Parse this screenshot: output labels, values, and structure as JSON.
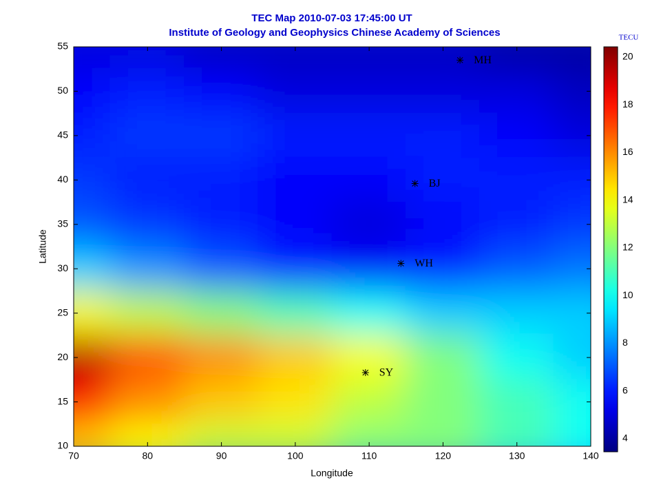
{
  "chart_data": {
    "type": "heatmap",
    "title": "TEC Map 2010-07-03 17:45:00 UT",
    "subtitle": "Institute of Geology and Geophysics Chinese Academy of Sciences",
    "x_label": "Longitude",
    "y_label": "Latitude",
    "colorbar_label": "TECU",
    "x": [
      70,
      80,
      90,
      100,
      110,
      120,
      130,
      140
    ],
    "y": [
      55,
      50,
      45,
      40,
      35,
      30,
      25,
      20,
      15,
      10
    ],
    "z": [
      [
        5,
        5,
        4.5,
        4.5,
        4.5,
        4.5,
        4,
        4
      ],
      [
        5.5,
        6,
        5.5,
        5,
        5,
        5,
        5,
        4.5
      ],
      [
        6,
        6.5,
        6.5,
        6,
        6,
        6,
        5.5,
        5
      ],
      [
        6.5,
        6,
        6,
        5.5,
        5.5,
        6,
        6,
        6
      ],
      [
        7,
        6.5,
        6,
        5.5,
        5,
        5.5,
        6,
        6.5
      ],
      [
        9,
        8,
        7,
        6,
        5.5,
        6,
        7,
        7.5
      ],
      [
        14,
        13,
        12,
        11,
        10,
        9,
        9,
        9
      ],
      [
        19.5,
        17,
        16,
        15,
        14,
        12,
        10,
        9
      ],
      [
        18,
        16,
        15,
        14.5,
        13,
        12,
        11,
        10
      ],
      [
        15,
        14,
        13,
        13,
        12,
        12,
        11,
        10
      ]
    ],
    "xlim": [
      70,
      140
    ],
    "ylim": [
      10,
      55
    ],
    "xticks": [
      70,
      80,
      90,
      100,
      110,
      120,
      130,
      140
    ],
    "yticks": [
      10,
      15,
      20,
      25,
      30,
      35,
      40,
      45,
      50,
      55
    ],
    "clim": [
      3.45,
      20.43
    ],
    "cticks": [
      4,
      6,
      8,
      10,
      12,
      14,
      16,
      18,
      20
    ],
    "colormap": "jet",
    "stations": [
      {
        "label": "MH",
        "lon": 122.3,
        "lat": 53.5
      },
      {
        "label": "BJ",
        "lon": 116.2,
        "lat": 39.6
      },
      {
        "label": "WH",
        "lon": 114.3,
        "lat": 30.6
      },
      {
        "label": "SY",
        "lon": 109.5,
        "lat": 18.3
      }
    ]
  }
}
